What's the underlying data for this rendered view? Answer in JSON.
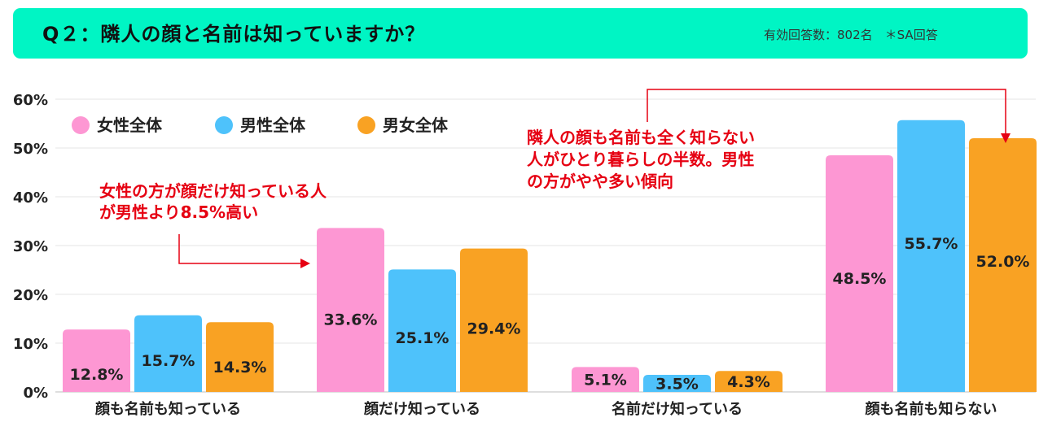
{
  "header": {
    "title": "Q２：隣人の顔と名前は知っていますか？",
    "meta": "有効回答数：802名　＊SA回答"
  },
  "chart_data": {
    "type": "bar",
    "categories": [
      "顔も名前も知っている",
      "顔だけ知っている",
      "名前だけ知っている",
      "顔も名前も知らない"
    ],
    "series": [
      {
        "name": "女性全体",
        "values": [
          12.8,
          33.6,
          5.1,
          48.5
        ],
        "color": "#fd97d3"
      },
      {
        "name": "男性全体",
        "values": [
          15.7,
          25.1,
          3.5,
          55.7
        ],
        "color": "#4ec2fb"
      },
      {
        "name": "男女全体",
        "values": [
          14.3,
          29.4,
          4.3,
          52.0
        ],
        "color": "#f9a223"
      }
    ],
    "data_labels": [
      [
        "12.8%",
        "33.6%",
        "5.1%",
        "48.5%"
      ],
      [
        "15.7%",
        "25.1%",
        "3.5%",
        "55.7%"
      ],
      [
        "14.3%",
        "29.4%",
        "4.3%",
        "52.0%"
      ]
    ],
    "ylim": [
      0,
      60
    ],
    "y_ticks": [
      "0%",
      "10%",
      "20%",
      "30%",
      "40%",
      "50%",
      "60%"
    ],
    "grid": true,
    "legend_position": "top-left",
    "annotations": [
      {
        "lines": [
          "女性の方が顔だけ知っている人",
          "が男性より8.5%高い"
        ],
        "color": "#e60012"
      },
      {
        "lines": [
          "隣人の顔も名前も全く知らない",
          "人がひとり暮らしの半数。男性",
          "の方がやや多い傾向"
        ],
        "color": "#e60012"
      }
    ]
  }
}
